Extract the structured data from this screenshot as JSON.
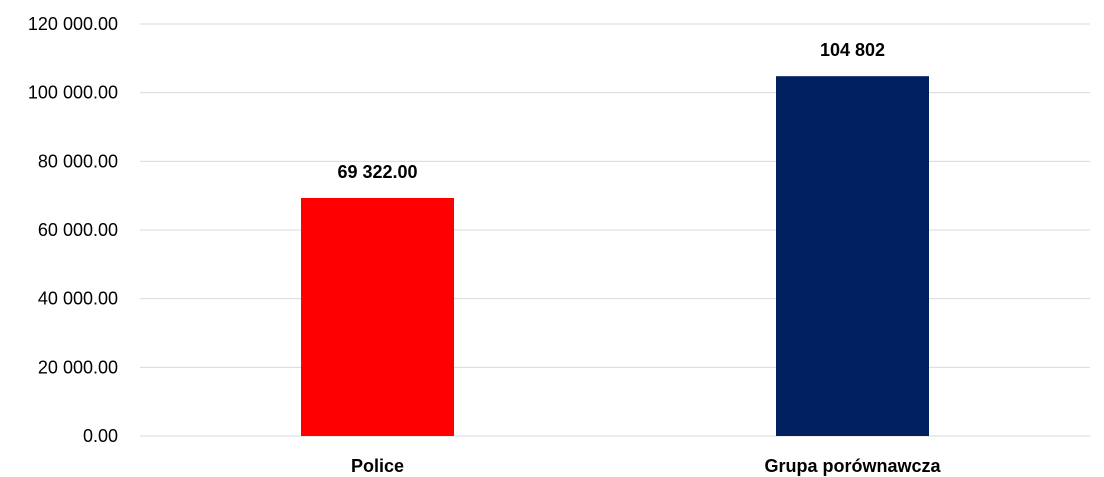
{
  "chart_data": {
    "type": "bar",
    "title": "",
    "xlabel": "",
    "ylabel": "",
    "ylim": [
      0,
      120000
    ],
    "grid": true,
    "y_ticks": [
      {
        "value": 0,
        "label": "0.00"
      },
      {
        "value": 20000,
        "label": "20 000.00"
      },
      {
        "value": 40000,
        "label": "40 000.00"
      },
      {
        "value": 60000,
        "label": "60 000.00"
      },
      {
        "value": 80000,
        "label": "80 000.00"
      },
      {
        "value": 100000,
        "label": "100 000.00"
      },
      {
        "value": 120000,
        "label": "120 000.00"
      }
    ],
    "categories": [
      "Police",
      "Grupa porównawcza"
    ],
    "values": [
      69322,
      104802
    ],
    "data_labels": [
      "69 322.00",
      "104 802"
    ],
    "bar_colors": [
      "#ff0000",
      "#002060"
    ]
  }
}
